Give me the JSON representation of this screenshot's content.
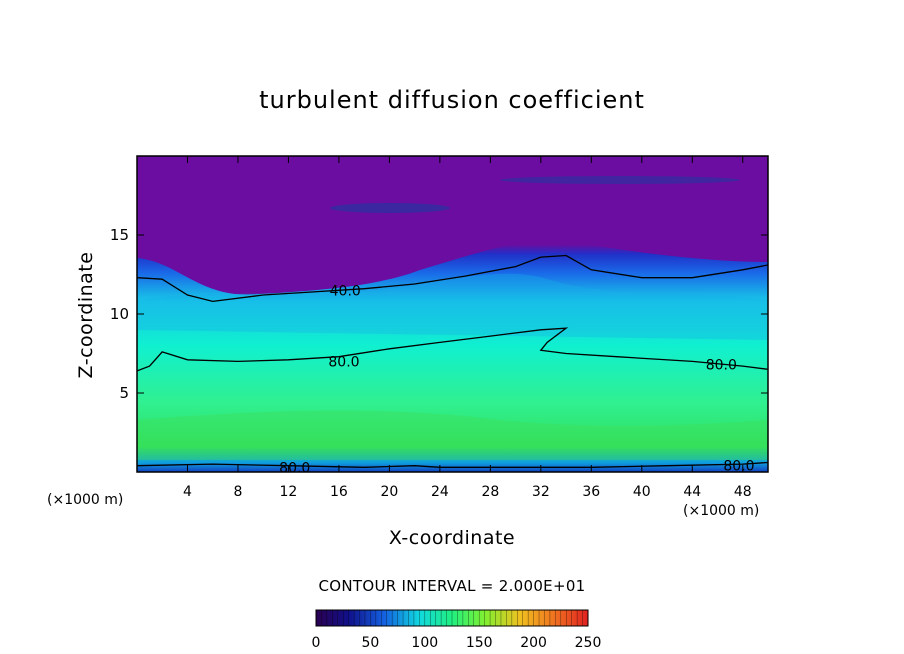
{
  "chart_data": {
    "type": "heatmap",
    "title": "turbulent diffusion coefficient",
    "xlabel": "X-coordinate",
    "ylabel": "Z-coordinate",
    "x_unit_label": "(×1000 m)",
    "x_range": [
      0,
      50
    ],
    "y_range": [
      0,
      20
    ],
    "x_ticks": [
      4,
      8,
      12,
      16,
      20,
      24,
      28,
      32,
      36,
      40,
      44,
      48
    ],
    "y_ticks": [
      5,
      10,
      15
    ],
    "contour_interval_label": "CONTOUR INTERVAL = 2.000E+01",
    "contour_labels": [
      {
        "text": "40.0",
        "x": 16.5,
        "y": 11.5
      },
      {
        "text": "80.0",
        "x": 16.4,
        "y": 7.0
      },
      {
        "text": "80.0",
        "x": 46.3,
        "y": 6.8
      },
      {
        "text": "80.0",
        "x": 12.5,
        "y": 0.3
      },
      {
        "text": "80.0",
        "x": 47.7,
        "y": 0.4
      }
    ],
    "contours": [
      {
        "level": 40,
        "points": [
          [
            0,
            12.3
          ],
          [
            2,
            12.2
          ],
          [
            4,
            11.2
          ],
          [
            6,
            10.8
          ],
          [
            10,
            11.2
          ],
          [
            14,
            11.4
          ],
          [
            18,
            11.6
          ],
          [
            22,
            11.9
          ],
          [
            26,
            12.4
          ],
          [
            30,
            13
          ],
          [
            32,
            13.6
          ],
          [
            34,
            13.7
          ],
          [
            36,
            12.8
          ],
          [
            40,
            12.3
          ],
          [
            44,
            12.3
          ],
          [
            48,
            12.8
          ],
          [
            50,
            13.1
          ]
        ]
      },
      {
        "level": 80,
        "points": [
          [
            0,
            6.4
          ],
          [
            1,
            6.7
          ],
          [
            2,
            7.6
          ],
          [
            4,
            7.1
          ],
          [
            8,
            7
          ],
          [
            12,
            7.1
          ],
          [
            16,
            7.3
          ],
          [
            20,
            7.8
          ],
          [
            24,
            8.2
          ],
          [
            28,
            8.6
          ],
          [
            32,
            9
          ],
          [
            34,
            9.1
          ],
          [
            32.5,
            8.2
          ],
          [
            32,
            7.7
          ],
          [
            34,
            7.5
          ],
          [
            38,
            7.3
          ],
          [
            44,
            7
          ],
          [
            48,
            6.7
          ],
          [
            50,
            6.5
          ]
        ]
      },
      {
        "level": 80,
        "points": [
          [
            0,
            0.4
          ],
          [
            6,
            0.5
          ],
          [
            12,
            0.4
          ],
          [
            18,
            0.3
          ],
          [
            22,
            0.4
          ],
          [
            24,
            0.3
          ],
          [
            30,
            0.3
          ],
          [
            36,
            0.3
          ],
          [
            42,
            0.4
          ],
          [
            48,
            0.5
          ],
          [
            50,
            0.6
          ]
        ]
      }
    ],
    "colorbar": {
      "ticks": [
        0,
        50,
        100,
        150,
        200,
        250
      ],
      "min": 0,
      "max": 250
    }
  }
}
